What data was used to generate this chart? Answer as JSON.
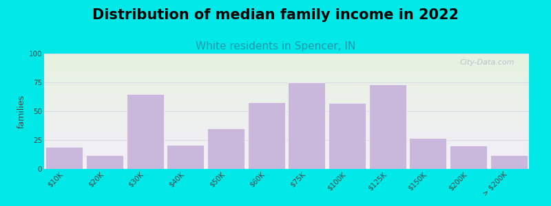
{
  "title": "Distribution of median family income in 2022",
  "subtitle": "White residents in Spencer, IN",
  "categories": [
    "$10K",
    "$20K",
    "$30K",
    "$40K",
    "$50K",
    "$60K",
    "$75K",
    "$100K",
    "$125K",
    "$150K",
    "$200K",
    "> $200K"
  ],
  "values": [
    19,
    12,
    65,
    21,
    35,
    58,
    75,
    57,
    73,
    27,
    20,
    12
  ],
  "bar_color": "#c9b8dc",
  "background_outer": "#00e8e8",
  "background_plot_top": "#e6f2e0",
  "background_plot_bottom": "#f3eff8",
  "ylabel": "families",
  "ylim": [
    0,
    100
  ],
  "yticks": [
    0,
    25,
    50,
    75,
    100
  ],
  "title_fontsize": 15,
  "subtitle_fontsize": 11,
  "subtitle_color": "#2299aa",
  "ylabel_fontsize": 9,
  "watermark_text": "City-Data.com",
  "tick_label_color": "#444444",
  "tick_label_fontsize": 7.5
}
